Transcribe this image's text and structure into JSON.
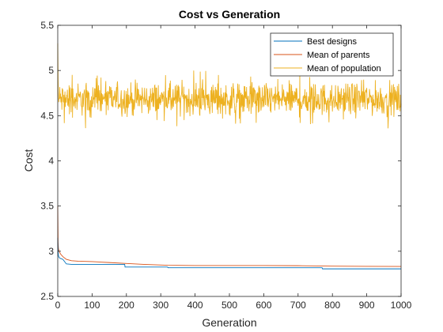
{
  "chart_data": {
    "type": "line",
    "title": "Cost vs Generation",
    "xlabel": "Generation",
    "ylabel": "Cost",
    "xlim": [
      0,
      1000
    ],
    "ylim": [
      2.5,
      5.5
    ],
    "xticks": [
      "0",
      "100",
      "200",
      "300",
      "400",
      "500",
      "600",
      "700",
      "800",
      "900",
      "1000"
    ],
    "yticks": [
      "2.5",
      "3",
      "3.5",
      "4",
      "4.5",
      "5",
      "5.5"
    ],
    "grid": false,
    "legend_position": "top-right",
    "series": [
      {
        "name": "Best designs",
        "color": "#0072bd",
        "x": [
          0,
          1,
          2,
          4,
          8,
          15,
          25,
          40,
          195,
          196,
          320,
          321,
          770,
          771,
          1000
        ],
        "y": [
          3.15,
          3.0,
          2.95,
          2.93,
          2.92,
          2.91,
          2.86,
          2.855,
          2.855,
          2.825,
          2.825,
          2.818,
          2.818,
          2.805,
          2.805
        ]
      },
      {
        "name": "Mean of parents",
        "color": "#d95319",
        "x": [
          0,
          1,
          2,
          4,
          8,
          15,
          25,
          40,
          60,
          100,
          150,
          200,
          250,
          320,
          400,
          500,
          600,
          700,
          800,
          900,
          1000
        ],
        "y": [
          3.5,
          3.1,
          3.03,
          3.0,
          2.97,
          2.94,
          2.91,
          2.895,
          2.89,
          2.885,
          2.875,
          2.865,
          2.855,
          2.845,
          2.842,
          2.842,
          2.842,
          2.84,
          2.835,
          2.833,
          2.832
        ]
      },
      {
        "name": "Mean of population",
        "color": "#edb120",
        "x": [
          0,
          1,
          2,
          3
        ],
        "y": [
          5.3,
          4.9,
          4.75,
          4.65
        ],
        "noisy_continuation": {
          "x_start": 3,
          "x_end": 1000,
          "mean": 4.68,
          "min": 4.33,
          "max": 5.0
        }
      }
    ]
  }
}
